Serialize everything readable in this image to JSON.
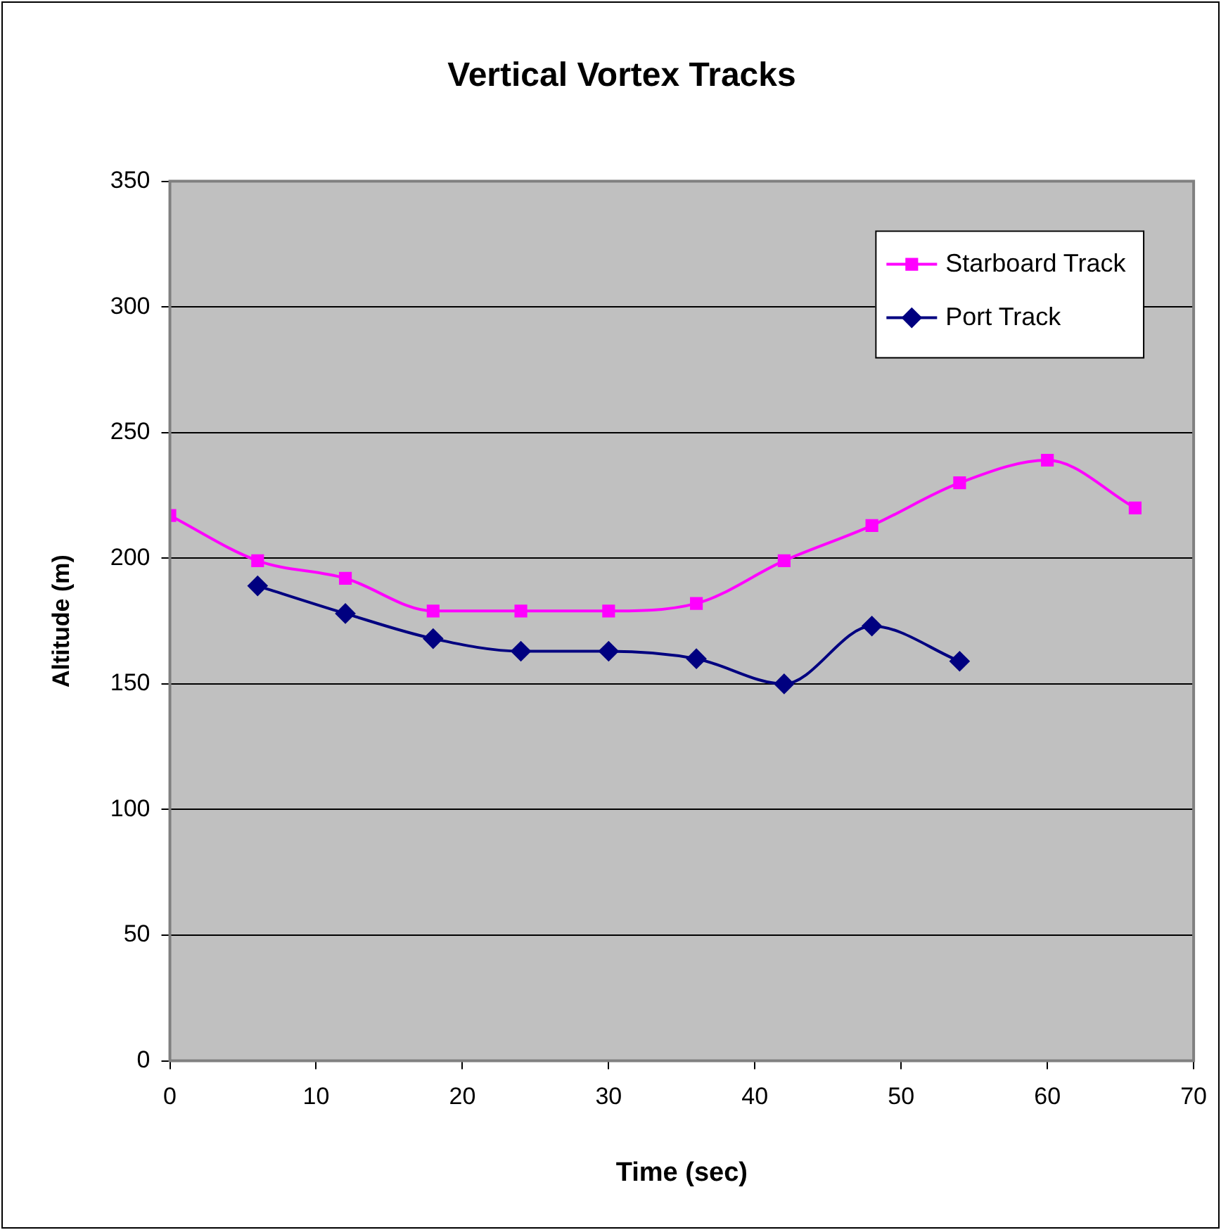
{
  "chart_data": {
    "type": "line",
    "title": "Vertical Vortex Tracks",
    "xlabel": "Time (sec)",
    "ylabel": "Altitude (m)",
    "xlim": [
      0,
      70
    ],
    "xticks": [
      0,
      10,
      20,
      30,
      40,
      50,
      60,
      70
    ],
    "ylim": [
      0,
      350
    ],
    "yticks": [
      0,
      50,
      100,
      150,
      200,
      250,
      300,
      350
    ],
    "grid": "y",
    "legend": "top right",
    "series": [
      {
        "name": "Starboard Track",
        "color": "#ff00ff",
        "marker": "square",
        "x": [
          0,
          6,
          12,
          18,
          24,
          30,
          36,
          42,
          48,
          54,
          60,
          66
        ],
        "values": [
          217,
          199,
          192,
          179,
          179,
          179,
          182,
          199,
          213,
          230,
          239,
          220
        ]
      },
      {
        "name": "Port Track",
        "color": "#000080",
        "marker": "diamond",
        "x": [
          6,
          12,
          18,
          24,
          30,
          36,
          42,
          48,
          54
        ],
        "values": [
          189,
          178,
          168,
          163,
          163,
          160,
          150,
          173,
          159
        ]
      }
    ]
  }
}
